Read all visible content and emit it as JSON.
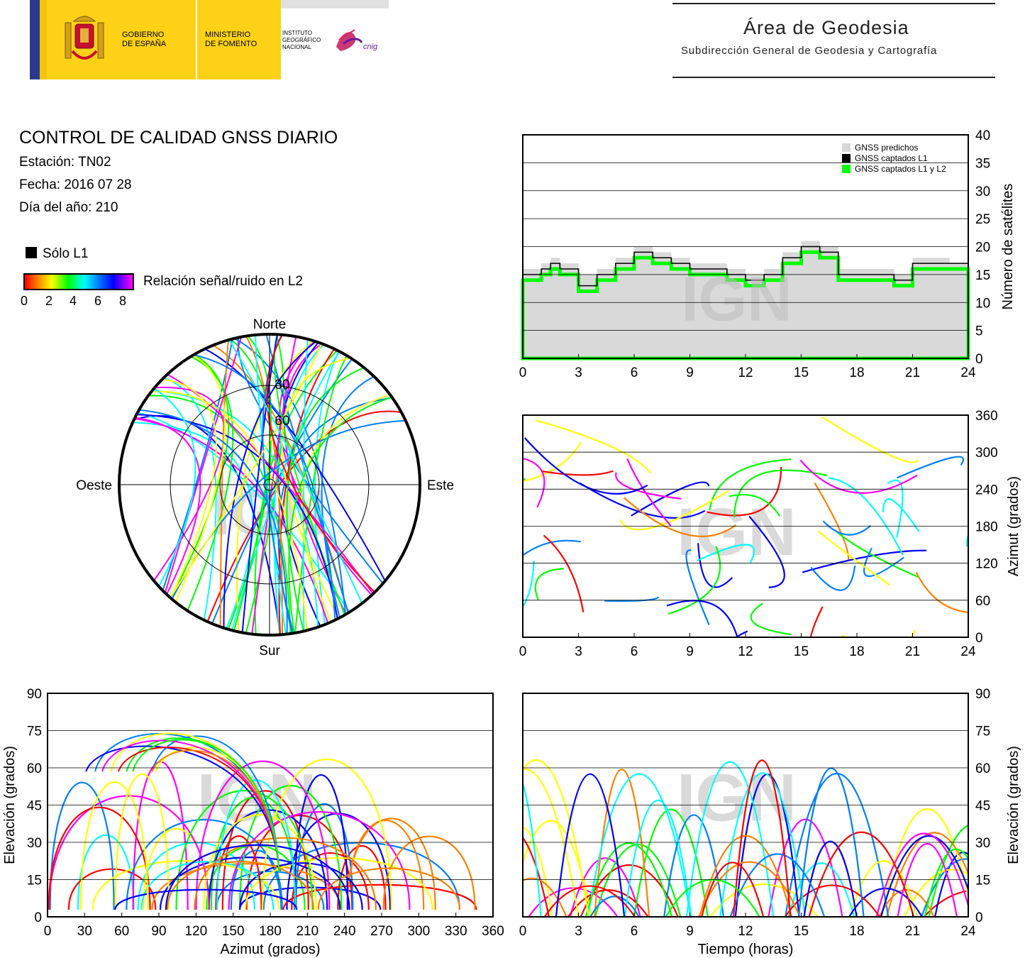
{
  "header": {
    "gov1": "GOBIERNO",
    "gov2": "DE ESPAÑA",
    "min1": "MINISTERIO",
    "min2": "DE FOMENTO",
    "ign1": "INSTITUTO",
    "ign2": "GEOGRÁFICO",
    "ign3": "NACIONAL",
    "cnig": "cnig",
    "area_title": "Área de Geodesia",
    "area_subtitle": "Subdirección General de Geodesia y Cartografía"
  },
  "info": {
    "title": "CONTROL DE CALIDAD GNSS DIARIO",
    "station": "Estación: TN02",
    "date": "Fecha: 2016 07 28",
    "doy": "Día del año: 210",
    "solo_l1": "Sólo L1",
    "snr_label": "Relación señal/ruido en L2",
    "snr_ticks": [
      "0",
      "2",
      "4",
      "6",
      "8"
    ]
  },
  "watermark": "IGN",
  "colors": {
    "predicted": "#d9d9d9",
    "captured_l1": "#000000",
    "captured_l1l2": "#00ff00",
    "palette": [
      "#ff0000",
      "#ff8000",
      "#ffff00",
      "#00ff00",
      "#00ffff",
      "#0080ff",
      "#0000ff",
      "#ff00ff"
    ]
  },
  "chart_data": [
    {
      "type": "area",
      "id": "satellites",
      "xlabel": "",
      "ylabel": "Número de satélites",
      "xlim": [
        0,
        24
      ],
      "ylim": [
        0,
        40
      ],
      "xticks": [
        "0",
        "3",
        "6",
        "9",
        "12",
        "15",
        "18",
        "21",
        "24"
      ],
      "yticks": [
        "0",
        "5",
        "10",
        "15",
        "20",
        "25",
        "30",
        "35",
        "40"
      ],
      "grid": "horizontal",
      "legend_position": "top-right",
      "series": [
        {
          "name": "GNSS predichos",
          "x": [
            0,
            1,
            1.5,
            2,
            3,
            4,
            5,
            6,
            7,
            8,
            9,
            10,
            11,
            12,
            13,
            14,
            15,
            16,
            17,
            18,
            19,
            20,
            21,
            22,
            23,
            24
          ],
          "values": [
            16,
            17,
            18,
            17,
            15,
            16,
            18,
            20,
            19,
            18,
            17,
            17,
            16,
            15,
            16,
            19,
            21,
            20,
            16,
            16,
            16,
            15,
            18,
            18,
            17,
            15
          ]
        },
        {
          "name": "GNSS captados L1",
          "x": [
            0,
            1,
            1.5,
            2,
            3,
            4,
            5,
            6,
            7,
            8,
            9,
            10,
            11,
            12,
            13,
            14,
            15,
            16,
            17,
            18,
            19,
            20,
            21,
            22,
            23,
            24
          ],
          "values": [
            15,
            16,
            17,
            16,
            13,
            15,
            17,
            19,
            18,
            17,
            16,
            16,
            15,
            14,
            15,
            18,
            20,
            19,
            15,
            15,
            15,
            14,
            17,
            17,
            17,
            14
          ]
        },
        {
          "name": "GNSS captados L1 y L2",
          "x": [
            0,
            1,
            1.5,
            2,
            3,
            4,
            5,
            6,
            7,
            8,
            9,
            10,
            11,
            12,
            13,
            14,
            15,
            16,
            17,
            18,
            19,
            20,
            21,
            22,
            23,
            24
          ],
          "values": [
            14,
            15,
            16,
            15,
            12,
            14,
            16,
            18,
            17,
            16,
            15,
            15,
            14,
            13,
            14,
            17,
            19,
            18,
            14,
            14,
            14,
            13,
            16,
            16,
            16,
            13
          ]
        }
      ]
    },
    {
      "type": "scatter",
      "id": "azimuth_time",
      "xlabel": "",
      "ylabel": "Azimut (grados)",
      "xlim": [
        0,
        24
      ],
      "ylim": [
        0,
        360
      ],
      "xticks": [
        "0",
        "3",
        "6",
        "9",
        "12",
        "15",
        "18",
        "21",
        "24"
      ],
      "yticks": [
        "0",
        "60",
        "120",
        "180",
        "240",
        "300",
        "360"
      ],
      "grid": "horizontal"
    },
    {
      "type": "scatter",
      "id": "elevation_azimuth",
      "xlabel": "Azimut (grados)",
      "ylabel": "Elevación (grados)",
      "xlim": [
        0,
        360
      ],
      "ylim": [
        0,
        90
      ],
      "xticks": [
        "0",
        "30",
        "60",
        "90",
        "120",
        "150",
        "180",
        "210",
        "240",
        "270",
        "300",
        "330",
        "360"
      ],
      "yticks": [
        "0",
        "15",
        "30",
        "45",
        "60",
        "75",
        "90"
      ],
      "grid": "horizontal"
    },
    {
      "type": "scatter",
      "id": "elevation_time",
      "xlabel": "Tiempo (horas)",
      "ylabel": "Elevación (grados)",
      "xlim": [
        0,
        24
      ],
      "ylim": [
        0,
        90
      ],
      "xticks": [
        "0",
        "3",
        "6",
        "9",
        "12",
        "15",
        "18",
        "21",
        "24"
      ],
      "yticks": [
        "0",
        "15",
        "30",
        "45",
        "60",
        "75",
        "90"
      ],
      "grid": "horizontal"
    },
    {
      "type": "scatter",
      "id": "skyplot",
      "directions": {
        "north": "Norte",
        "south": "Sur",
        "east": "Este",
        "west": "Oeste"
      },
      "ring_labels": [
        "30",
        "60"
      ]
    }
  ]
}
